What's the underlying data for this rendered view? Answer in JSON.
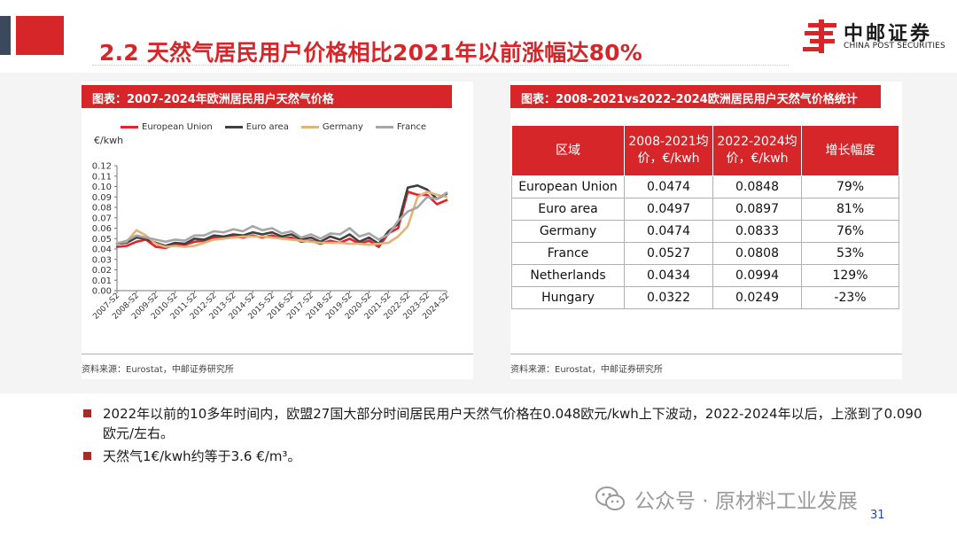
{
  "slide": {
    "title": "2.2 天然气居民用户价格相比2021年以前涨幅达80%",
    "page_number": "31"
  },
  "logo": {
    "name_cn": "中邮证券",
    "name_en": "CHINA POST SECURITIES",
    "color": "#d7262a"
  },
  "left_panel": {
    "header": "图表：2007-2024年欧洲居民用户天然气价格",
    "source": "资料来源：Eurostat，中邮证券研究所"
  },
  "right_panel": {
    "header": "图表：2008-2021vs2022-2024欧洲居民用户天然气价格统计",
    "source": "资料来源：Eurostat，中邮证券研究所",
    "table": {
      "headers": [
        "区域",
        "2008-2021均价，€/kwh",
        "2022-2024均价，€/kwh",
        "增长幅度"
      ],
      "rows": [
        [
          "European Union",
          "0.0474",
          "0.0848",
          "79%"
        ],
        [
          "Euro area",
          "0.0497",
          "0.0897",
          "81%"
        ],
        [
          "Germany",
          "0.0474",
          "0.0833",
          "76%"
        ],
        [
          "France",
          "0.0527",
          "0.0808",
          "53%"
        ],
        [
          "Netherlands",
          "0.0434",
          "0.0994",
          "129%"
        ],
        [
          "Hungary",
          "0.0322",
          "0.0249",
          "-23%"
        ]
      ]
    }
  },
  "chart_data": {
    "type": "line",
    "ylabel": "€/kwh",
    "ylim": [
      0,
      0.12
    ],
    "yticks": [
      "0.00",
      "0.01",
      "0.02",
      "0.03",
      "0.04",
      "0.05",
      "0.06",
      "0.07",
      "0.08",
      "0.09",
      "0.10",
      "0.11",
      "0.12"
    ],
    "xtick_labels": [
      "2007-S2",
      "2008-S2",
      "2009-S2",
      "2010-S2",
      "2011-S2",
      "2012-S2",
      "2013-S2",
      "2014-S2",
      "2015-S2",
      "2016-S2",
      "2017-S2",
      "2018-S2",
      "2019-S2",
      "2020-S2",
      "2021-S2",
      "2022-S2",
      "2023-S2",
      "2024-S2"
    ],
    "x": [
      "2007-S2",
      "2008-S1",
      "2008-S2",
      "2009-S1",
      "2009-S2",
      "2010-S1",
      "2010-S2",
      "2011-S1",
      "2011-S2",
      "2012-S1",
      "2012-S2",
      "2013-S1",
      "2013-S2",
      "2014-S1",
      "2014-S2",
      "2015-S1",
      "2015-S2",
      "2016-S1",
      "2016-S2",
      "2017-S1",
      "2017-S2",
      "2018-S1",
      "2018-S2",
      "2019-S1",
      "2019-S2",
      "2020-S1",
      "2020-S2",
      "2021-S1",
      "2021-S2",
      "2022-S1",
      "2022-S2",
      "2023-S1",
      "2023-S2",
      "2024-S1",
      "2024-S2"
    ],
    "legend_position": "top",
    "series": [
      {
        "name": "European Union",
        "color": "#e8212a",
        "values": [
          0.042,
          0.043,
          0.047,
          0.049,
          0.042,
          0.041,
          0.044,
          0.044,
          0.047,
          0.048,
          0.051,
          0.05,
          0.052,
          0.051,
          0.053,
          0.051,
          0.053,
          0.05,
          0.051,
          0.047,
          0.048,
          0.045,
          0.048,
          0.046,
          0.05,
          0.045,
          0.048,
          0.042,
          0.055,
          0.06,
          0.095,
          0.092,
          0.092,
          0.083,
          0.087
        ]
      },
      {
        "name": "Euro area",
        "color": "#404040",
        "values": [
          0.045,
          0.046,
          0.051,
          0.05,
          0.046,
          0.043,
          0.046,
          0.045,
          0.05,
          0.049,
          0.053,
          0.052,
          0.054,
          0.053,
          0.056,
          0.054,
          0.056,
          0.052,
          0.054,
          0.049,
          0.051,
          0.047,
          0.052,
          0.049,
          0.054,
          0.047,
          0.051,
          0.045,
          0.057,
          0.064,
          0.099,
          0.101,
          0.097,
          0.088,
          0.093
        ]
      },
      {
        "name": "Germany",
        "color": "#e2b478",
        "values": [
          0.046,
          0.047,
          0.058,
          0.053,
          0.045,
          0.042,
          0.043,
          0.042,
          0.043,
          0.046,
          0.049,
          0.05,
          0.051,
          0.052,
          0.052,
          0.052,
          0.051,
          0.05,
          0.049,
          0.048,
          0.047,
          0.046,
          0.046,
          0.046,
          0.045,
          0.045,
          0.044,
          0.045,
          0.046,
          0.052,
          0.062,
          0.09,
          0.095,
          0.092,
          0.09
        ]
      },
      {
        "name": "France",
        "color": "#a6a6a6",
        "values": [
          0.045,
          0.048,
          0.053,
          0.051,
          0.049,
          0.047,
          0.049,
          0.048,
          0.053,
          0.053,
          0.057,
          0.056,
          0.059,
          0.057,
          0.062,
          0.058,
          0.06,
          0.055,
          0.057,
          0.051,
          0.054,
          0.05,
          0.055,
          0.054,
          0.06,
          0.052,
          0.055,
          0.049,
          0.054,
          0.067,
          0.076,
          0.08,
          0.09,
          0.088,
          0.094
        ]
      }
    ]
  },
  "bullets": [
    "2022年以前的10多年时间内，欧盟27国大部分时间居民用户天然气价格在0.048欧元/kwh上下波动，2022-2024年以后，上涨到了0.090欧元/左右。",
    "天然气1€/kwh约等于3.6 €/m³。"
  ],
  "watermark": {
    "text": "公众号 · 原材料工业发展",
    "icon": "wechat-icon"
  }
}
